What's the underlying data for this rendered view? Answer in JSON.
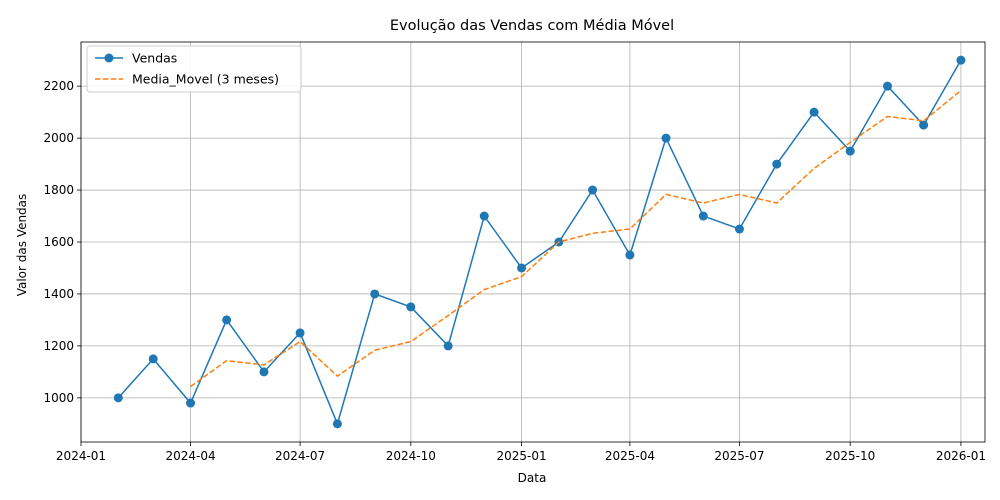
{
  "chart_data": {
    "type": "line",
    "title": "Evolução das Vendas com Média Móvel",
    "xlabel": "Data",
    "ylabel": "Valor das Vendas",
    "x": [
      "2024-02-01",
      "2024-03-01",
      "2024-04-01",
      "2024-05-01",
      "2024-06-01",
      "2024-07-01",
      "2024-08-01",
      "2024-09-01",
      "2024-10-01",
      "2024-11-01",
      "2024-12-01",
      "2025-01-01",
      "2025-02-01",
      "2025-03-01",
      "2025-04-01",
      "2025-05-01",
      "2025-06-01",
      "2025-07-01",
      "2025-08-01",
      "2025-09-01",
      "2025-10-01",
      "2025-11-01",
      "2025-12-01",
      "2026-01-01"
    ],
    "series": [
      {
        "name": "Vendas",
        "color": "#1f77b4",
        "style": "solid",
        "marker": "circle",
        "values": [
          1000,
          1150,
          980,
          1300,
          1100,
          1250,
          900,
          1400,
          1350,
          1200,
          1700,
          1500,
          1600,
          1800,
          1550,
          2000,
          1700,
          1650,
          1900,
          2100,
          1950,
          2200,
          2050,
          2300
        ]
      },
      {
        "name": "Media_Movel (3 meses)",
        "color": "#ff7f0e",
        "style": "dashed",
        "marker": "none",
        "values": [
          null,
          null,
          1043.33,
          1143.33,
          1126.67,
          1216.67,
          1083.33,
          1183.33,
          1216.67,
          1316.67,
          1416.67,
          1466.67,
          1600,
          1633.33,
          1650,
          1783.33,
          1750,
          1783.33,
          1750,
          1883.33,
          1983.33,
          2083.33,
          2066.67,
          2183.33
        ]
      }
    ],
    "xticks": [
      "2024-01",
      "2024-04",
      "2024-07",
      "2024-10",
      "2025-01",
      "2025-04",
      "2025-07",
      "2025-10",
      "2026-01"
    ],
    "yticks": [
      1000,
      1200,
      1400,
      1600,
      1800,
      2000,
      2200
    ],
    "xlim": [
      "2024-01-01",
      "2026-01-21"
    ],
    "ylim": [
      830,
      2370
    ],
    "grid": true,
    "legend_position": "top-left"
  }
}
